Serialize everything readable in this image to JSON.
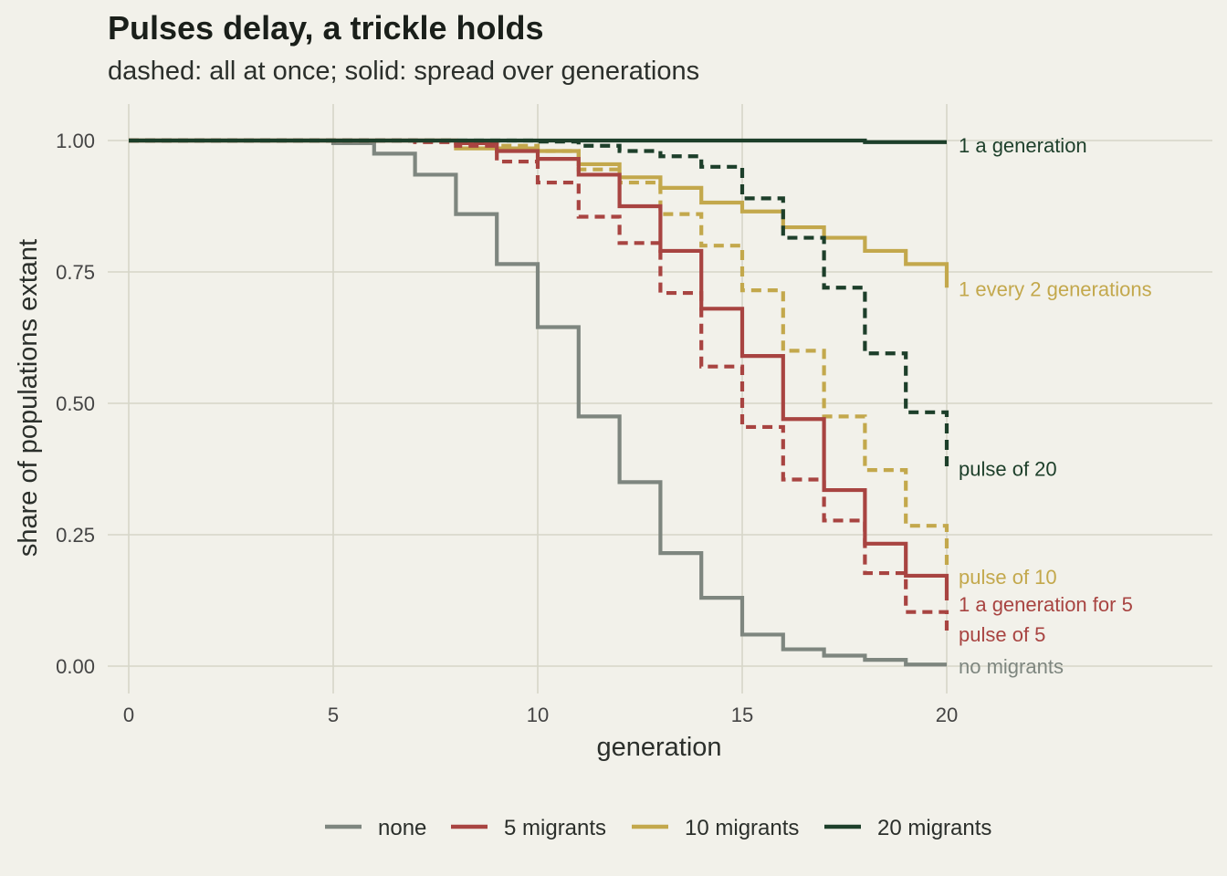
{
  "title": "Pulses delay, a trickle holds",
  "subtitle": "dashed: all at once; solid: spread over generations",
  "chart_data": {
    "type": "line",
    "step": true,
    "xlabel": "generation",
    "ylabel": "share of populations extant",
    "xlim": [
      0,
      20
    ],
    "ylim": [
      0,
      1
    ],
    "x_ticks": [
      0,
      5,
      10,
      15,
      20
    ],
    "x_tick_labels": [
      "0",
      "5",
      "10",
      "15",
      "20"
    ],
    "y_ticks": [
      0,
      0.25,
      0.5,
      0.75,
      1
    ],
    "y_tick_labels": [
      "0.00",
      "0.25",
      "0.50",
      "0.75",
      "1.00"
    ],
    "grid": true,
    "legend_position": "bottom",
    "x": [
      0,
      1,
      2,
      3,
      4,
      5,
      6,
      7,
      8,
      9,
      10,
      11,
      12,
      13,
      14,
      15,
      16,
      17,
      18,
      19,
      20
    ],
    "legend": [
      {
        "label": "none",
        "color": "#7e867f"
      },
      {
        "label": "5 migrants",
        "color": "#a84441"
      },
      {
        "label": "10 migrants",
        "color": "#c3a84c"
      },
      {
        "label": "20 migrants",
        "color": "#1d3f2a"
      }
    ],
    "series": [
      {
        "label": "no migrants",
        "group": "none",
        "style": "solid",
        "color": "#7e867f",
        "values": [
          1,
          1,
          1,
          1,
          1,
          0.995,
          0.975,
          0.935,
          0.86,
          0.765,
          0.645,
          0.475,
          0.35,
          0.215,
          0.13,
          0.06,
          0.032,
          0.02,
          0.012,
          0.003,
          0.003
        ]
      },
      {
        "label": "pulse of 5",
        "group": "5 migrants",
        "style": "dashed",
        "color": "#a84441",
        "values": [
          1,
          1,
          1,
          1,
          1,
          1,
          1,
          0.997,
          0.99,
          0.96,
          0.92,
          0.855,
          0.805,
          0.71,
          0.57,
          0.455,
          0.355,
          0.277,
          0.177,
          0.103,
          0.065
        ]
      },
      {
        "label": "1 a generation for 5",
        "group": "5 migrants",
        "style": "solid",
        "color": "#a84441",
        "values": [
          1,
          1,
          1,
          1,
          1,
          1,
          1,
          1,
          0.995,
          0.98,
          0.965,
          0.935,
          0.875,
          0.79,
          0.68,
          0.59,
          0.47,
          0.335,
          0.233,
          0.172,
          0.125
        ]
      },
      {
        "label": "pulse of 10",
        "group": "10 migrants",
        "style": "dashed",
        "color": "#c3a84c",
        "values": [
          1,
          1,
          1,
          1,
          1,
          1,
          1,
          1,
          0.998,
          0.99,
          0.98,
          0.945,
          0.92,
          0.86,
          0.8,
          0.715,
          0.6,
          0.475,
          0.373,
          0.267,
          0.185
        ]
      },
      {
        "label": "1 every 2 generations",
        "group": "10 migrants",
        "style": "solid",
        "color": "#c3a84c",
        "values": [
          1,
          1,
          1,
          1,
          1,
          1,
          1,
          1,
          0.985,
          0.985,
          0.98,
          0.955,
          0.93,
          0.91,
          0.882,
          0.865,
          0.835,
          0.815,
          0.79,
          0.765,
          0.72
        ]
      },
      {
        "label": "pulse of 20",
        "group": "20 migrants",
        "style": "dashed",
        "color": "#1d3f2a",
        "values": [
          1,
          1,
          1,
          1,
          1,
          1,
          1,
          1,
          1,
          1,
          0.998,
          0.99,
          0.98,
          0.97,
          0.95,
          0.89,
          0.815,
          0.72,
          0.595,
          0.483,
          0.375
        ]
      },
      {
        "label": "1 a generation",
        "group": "20 migrants",
        "style": "solid",
        "color": "#1d3f2a",
        "values": [
          1,
          1,
          1,
          1,
          1,
          1,
          1,
          1,
          1,
          1,
          1,
          1,
          1,
          1,
          1,
          1,
          1,
          1,
          0.997,
          0.997,
          0.997
        ]
      }
    ],
    "end_labels": [
      {
        "text": "1 a generation",
        "color": "#1d3f2a",
        "y": 0.991
      },
      {
        "text": "1 every 2 generations",
        "color": "#c3a84c",
        "y": 0.718
      },
      {
        "text": "pulse of 20",
        "color": "#1d3f2a",
        "y": 0.376
      },
      {
        "text": "pulse of 10",
        "color": "#c3a84c",
        "y": 0.17
      },
      {
        "text": "1 a generation for 5",
        "color": "#a84441",
        "y": 0.118
      },
      {
        "text": "pulse of 5",
        "color": "#a84441",
        "y": 0.061
      },
      {
        "text": "no migrants",
        "color": "#7e867f",
        "y": 0.0
      }
    ]
  }
}
